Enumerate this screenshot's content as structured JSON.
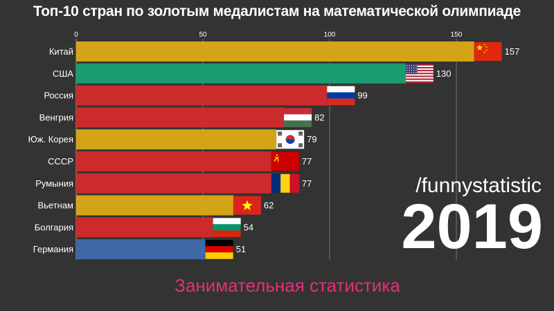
{
  "title": "Топ-10 стран по золотым медалистам на математической олимпиаде",
  "watermark": "/funnystatistic",
  "year": "2019",
  "subtitle": "Занимательная статистика",
  "chart_data": {
    "type": "bar",
    "orientation": "horizontal",
    "categories": [
      "Китай",
      "США",
      "Россия",
      "Венгрия",
      "Юж. Корея",
      "СССР",
      "Румыния",
      "Вьетнам",
      "Болгария",
      "Германия"
    ],
    "values": [
      157,
      130,
      99,
      82,
      79,
      77,
      77,
      62,
      54,
      51
    ],
    "bar_colors": [
      "#d4a418",
      "#1a9b72",
      "#cc2b2b",
      "#cc2b2b",
      "#d4a418",
      "#cc2b2b",
      "#cc2b2b",
      "#d4a418",
      "#cc2b2b",
      "#3e68a6"
    ],
    "flags": [
      "china-flag",
      "usa-flag",
      "russia-flag",
      "hungary-flag",
      "south-korea-flag",
      "ussr-flag",
      "romania-flag",
      "vietnam-flag",
      "bulgaria-flag",
      "germany-flag"
    ],
    "xticks": [
      0,
      50,
      100,
      150
    ],
    "xlim": [
      0,
      168
    ],
    "grid": true
  }
}
